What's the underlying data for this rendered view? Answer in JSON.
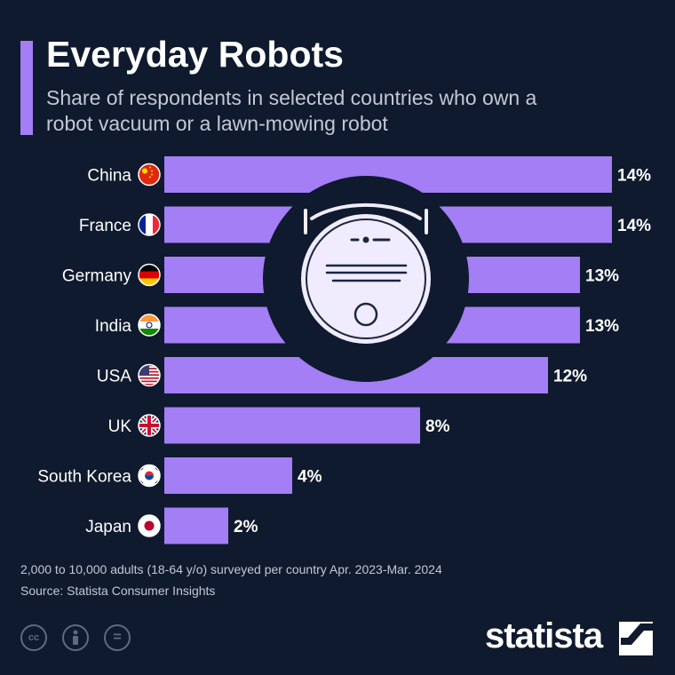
{
  "header": {
    "title": "Everyday Robots",
    "subtitle": "Share of respondents in selected countries who own a robot vacuum or a lawn-mowing robot"
  },
  "chart_data": {
    "type": "bar",
    "orientation": "horizontal",
    "title": "Everyday Robots",
    "subtitle": "Share of respondents in selected countries who own a robot vacuum or a lawn-mowing robot",
    "categories": [
      "China",
      "France",
      "Germany",
      "India",
      "USA",
      "UK",
      "South Korea",
      "Japan"
    ],
    "values": [
      14,
      14,
      13,
      13,
      12,
      8,
      4,
      2
    ],
    "value_labels": [
      "14%",
      "14%",
      "13%",
      "13%",
      "12%",
      "8%",
      "4%",
      "2%"
    ],
    "unit": "%",
    "xlim": [
      0,
      14
    ],
    "grid": false,
    "bar_color": "#a37ef5"
  },
  "flags": [
    "china-flag-icon",
    "france-flag-icon",
    "germany-flag-icon",
    "india-flag-icon",
    "usa-flag-icon",
    "uk-flag-icon",
    "south-korea-flag-icon",
    "japan-flag-icon"
  ],
  "footer": {
    "note": "2,000 to 10,000 adults (18-64 y/o) surveyed per country Apr. 2023-Mar. 2024",
    "source": "Source: Statista Consumer Insights",
    "license_icons": [
      "creative-commons-icon",
      "attribution-icon",
      "no-derivatives-icon"
    ],
    "license_cc": "cc",
    "license_eq": "=",
    "brand": "statista"
  },
  "colors": {
    "background": "#0f1a2e",
    "accent": "#a37ef5",
    "text": "#ffffff",
    "muted": "#c3c8d4",
    "illustration": "#f0ecfd"
  }
}
